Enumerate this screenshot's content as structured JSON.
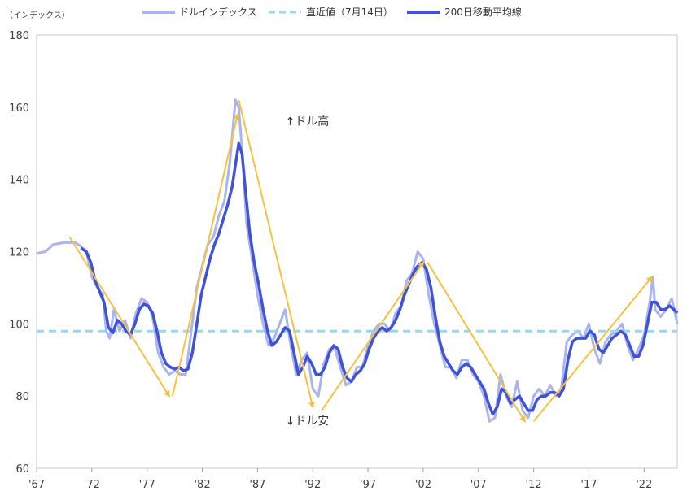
{
  "chart_data": {
    "type": "line",
    "unit_label": "（インデックス）",
    "ylim": [
      60,
      180
    ],
    "yticks": [
      60,
      80,
      100,
      120,
      140,
      160,
      180
    ],
    "xlim": [
      1967,
      2025
    ],
    "xticks": [
      {
        "value": 1967,
        "label": "'67"
      },
      {
        "value": 1972,
        "label": "'72"
      },
      {
        "value": 1977,
        "label": "'77"
      },
      {
        "value": 1982,
        "label": "'82"
      },
      {
        "value": 1987,
        "label": "'87"
      },
      {
        "value": 1992,
        "label": "'92"
      },
      {
        "value": 1997,
        "label": "'97"
      },
      {
        "value": 2002,
        "label": "'02"
      },
      {
        "value": 2007,
        "label": "'07"
      },
      {
        "value": 2012,
        "label": "'12"
      },
      {
        "value": 2017,
        "label": "'17"
      },
      {
        "value": 2022,
        "label": "'22"
      }
    ],
    "grid": false,
    "legend_position": "top",
    "series": [
      {
        "name": "ドルインデックス",
        "color": "#aab4f0",
        "points": [
          [
            1967.0,
            119.5
          ],
          [
            1967.8,
            120
          ],
          [
            1968.5,
            122
          ],
          [
            1969.5,
            122.5
          ],
          [
            1970.5,
            122.5
          ],
          [
            1971.0,
            121.5
          ],
          [
            1971.5,
            120
          ],
          [
            1972.0,
            113
          ],
          [
            1972.5,
            110
          ],
          [
            1973.0,
            108
          ],
          [
            1973.3,
            98
          ],
          [
            1973.6,
            96
          ],
          [
            1974.0,
            104
          ],
          [
            1974.5,
            98
          ],
          [
            1975.0,
            101
          ],
          [
            1975.5,
            96
          ],
          [
            1976.0,
            103
          ],
          [
            1976.5,
            107
          ],
          [
            1977.0,
            106
          ],
          [
            1977.5,
            102
          ],
          [
            1978.0,
            92
          ],
          [
            1978.5,
            88
          ],
          [
            1979.0,
            86
          ],
          [
            1979.5,
            87
          ],
          [
            1980.0,
            86
          ],
          [
            1980.5,
            86
          ],
          [
            1981.0,
            98
          ],
          [
            1981.5,
            110
          ],
          [
            1982.0,
            116
          ],
          [
            1982.5,
            122
          ],
          [
            1983.0,
            124
          ],
          [
            1983.5,
            130
          ],
          [
            1984.0,
            134
          ],
          [
            1984.5,
            145
          ],
          [
            1985.0,
            162
          ],
          [
            1985.3,
            160
          ],
          [
            1985.7,
            144
          ],
          [
            1986.0,
            128
          ],
          [
            1986.5,
            118
          ],
          [
            1987.0,
            108
          ],
          [
            1987.5,
            100
          ],
          [
            1988.0,
            94
          ],
          [
            1988.5,
            96
          ],
          [
            1989.0,
            100
          ],
          [
            1989.5,
            104
          ],
          [
            1990.0,
            94
          ],
          [
            1990.5,
            86
          ],
          [
            1991.0,
            90
          ],
          [
            1991.5,
            92
          ],
          [
            1992.0,
            82
          ],
          [
            1992.5,
            80
          ],
          [
            1993.0,
            89
          ],
          [
            1993.5,
            93
          ],
          [
            1994.0,
            93
          ],
          [
            1994.5,
            88
          ],
          [
            1995.0,
            83
          ],
          [
            1995.5,
            84
          ],
          [
            1996.0,
            88
          ],
          [
            1996.5,
            88
          ],
          [
            1997.0,
            94
          ],
          [
            1997.5,
            98
          ],
          [
            1998.0,
            100
          ],
          [
            1998.5,
            100
          ],
          [
            1999.0,
            98
          ],
          [
            1999.5,
            103
          ],
          [
            2000.0,
            105
          ],
          [
            2000.5,
            112
          ],
          [
            2001.0,
            114
          ],
          [
            2001.5,
            120
          ],
          [
            2002.0,
            118
          ],
          [
            2002.5,
            108
          ],
          [
            2003.0,
            100
          ],
          [
            2003.5,
            94
          ],
          [
            2004.0,
            88
          ],
          [
            2004.5,
            88
          ],
          [
            2005.0,
            85
          ],
          [
            2005.5,
            90
          ],
          [
            2006.0,
            90
          ],
          [
            2006.5,
            86
          ],
          [
            2007.0,
            84
          ],
          [
            2007.5,
            80
          ],
          [
            2008.0,
            73
          ],
          [
            2008.5,
            74
          ],
          [
            2009.0,
            86
          ],
          [
            2009.5,
            80
          ],
          [
            2010.0,
            77
          ],
          [
            2010.5,
            84
          ],
          [
            2011.0,
            76
          ],
          [
            2011.5,
            74
          ],
          [
            2012.0,
            80
          ],
          [
            2012.5,
            82
          ],
          [
            2013.0,
            80
          ],
          [
            2013.5,
            83
          ],
          [
            2014.0,
            80
          ],
          [
            2014.5,
            82
          ],
          [
            2015.0,
            95
          ],
          [
            2015.5,
            97
          ],
          [
            2016.0,
            98
          ],
          [
            2016.5,
            96
          ],
          [
            2017.0,
            100
          ],
          [
            2017.5,
            93
          ],
          [
            2018.0,
            89
          ],
          [
            2018.5,
            95
          ],
          [
            2019.0,
            97
          ],
          [
            2019.5,
            98
          ],
          [
            2020.0,
            100
          ],
          [
            2020.5,
            94
          ],
          [
            2021.0,
            90
          ],
          [
            2021.5,
            93
          ],
          [
            2022.0,
            97
          ],
          [
            2022.5,
            106
          ],
          [
            2022.8,
            113
          ],
          [
            2023.0,
            104
          ],
          [
            2023.5,
            102
          ],
          [
            2024.0,
            104
          ],
          [
            2024.5,
            107
          ],
          [
            2025.0,
            100
          ]
        ]
      },
      {
        "name": "直近値（7月14日）",
        "color": "#8fdcf5",
        "value": 98
      },
      {
        "name": "200日移動平均線",
        "color": "#4052d6",
        "points": [
          [
            1971.0,
            121
          ],
          [
            1971.5,
            120
          ],
          [
            1971.9,
            117
          ],
          [
            1972.3,
            112
          ],
          [
            1972.7,
            109
          ],
          [
            1973.1,
            106
          ],
          [
            1973.5,
            99
          ],
          [
            1973.9,
            97.5
          ],
          [
            1974.3,
            101
          ],
          [
            1974.7,
            100
          ],
          [
            1975.1,
            98
          ],
          [
            1975.5,
            97
          ],
          [
            1975.9,
            100
          ],
          [
            1976.3,
            104
          ],
          [
            1976.7,
            105.5
          ],
          [
            1977.1,
            105
          ],
          [
            1977.5,
            103
          ],
          [
            1977.9,
            98
          ],
          [
            1978.3,
            92
          ],
          [
            1978.7,
            89
          ],
          [
            1979.1,
            88
          ],
          [
            1979.5,
            87.5
          ],
          [
            1979.9,
            88
          ],
          [
            1980.3,
            87
          ],
          [
            1980.7,
            87.5
          ],
          [
            1981.1,
            92
          ],
          [
            1981.5,
            100
          ],
          [
            1981.9,
            108
          ],
          [
            1982.3,
            113
          ],
          [
            1982.7,
            118
          ],
          [
            1983.1,
            122
          ],
          [
            1983.5,
            125
          ],
          [
            1983.9,
            129
          ],
          [
            1984.3,
            133
          ],
          [
            1984.7,
            138
          ],
          [
            1985.0,
            144
          ],
          [
            1985.3,
            150
          ],
          [
            1985.6,
            147
          ],
          [
            1985.9,
            137
          ],
          [
            1986.3,
            125
          ],
          [
            1986.7,
            117
          ],
          [
            1987.1,
            111
          ],
          [
            1987.5,
            104
          ],
          [
            1987.9,
            98
          ],
          [
            1988.3,
            94
          ],
          [
            1988.7,
            95
          ],
          [
            1989.1,
            97
          ],
          [
            1989.5,
            99
          ],
          [
            1989.9,
            98
          ],
          [
            1990.3,
            92
          ],
          [
            1990.7,
            86
          ],
          [
            1991.1,
            88
          ],
          [
            1991.5,
            91
          ],
          [
            1991.9,
            89
          ],
          [
            1992.3,
            86
          ],
          [
            1992.7,
            86
          ],
          [
            1993.1,
            88
          ],
          [
            1993.5,
            92
          ],
          [
            1993.9,
            94
          ],
          [
            1994.3,
            93
          ],
          [
            1994.7,
            88
          ],
          [
            1995.1,
            85
          ],
          [
            1995.5,
            84
          ],
          [
            1995.9,
            86
          ],
          [
            1996.3,
            87
          ],
          [
            1996.7,
            89
          ],
          [
            1997.1,
            93
          ],
          [
            1997.5,
            96
          ],
          [
            1997.9,
            98
          ],
          [
            1998.3,
            99
          ],
          [
            1998.7,
            98
          ],
          [
            1999.1,
            99
          ],
          [
            1999.5,
            101
          ],
          [
            1999.9,
            104
          ],
          [
            2000.3,
            108
          ],
          [
            2000.7,
            111
          ],
          [
            2001.1,
            114
          ],
          [
            2001.5,
            116
          ],
          [
            2001.9,
            117
          ],
          [
            2002.3,
            115
          ],
          [
            2002.7,
            110
          ],
          [
            2003.1,
            102
          ],
          [
            2003.5,
            95
          ],
          [
            2003.9,
            91
          ],
          [
            2004.3,
            89
          ],
          [
            2004.7,
            87
          ],
          [
            2005.1,
            86
          ],
          [
            2005.5,
            88
          ],
          [
            2005.9,
            89
          ],
          [
            2006.3,
            88
          ],
          [
            2006.7,
            86
          ],
          [
            2007.1,
            84
          ],
          [
            2007.5,
            82
          ],
          [
            2007.9,
            78
          ],
          [
            2008.3,
            75
          ],
          [
            2008.7,
            77
          ],
          [
            2009.1,
            82
          ],
          [
            2009.5,
            81
          ],
          [
            2009.9,
            78
          ],
          [
            2010.3,
            79
          ],
          [
            2010.7,
            80
          ],
          [
            2011.1,
            78
          ],
          [
            2011.5,
            76
          ],
          [
            2011.9,
            76
          ],
          [
            2012.3,
            79
          ],
          [
            2012.7,
            80
          ],
          [
            2013.1,
            80
          ],
          [
            2013.5,
            81
          ],
          [
            2013.9,
            81
          ],
          [
            2014.3,
            80
          ],
          [
            2014.7,
            82
          ],
          [
            2015.1,
            90
          ],
          [
            2015.5,
            95
          ],
          [
            2015.9,
            96
          ],
          [
            2016.3,
            96
          ],
          [
            2016.7,
            96
          ],
          [
            2017.1,
            98
          ],
          [
            2017.5,
            97
          ],
          [
            2017.9,
            93
          ],
          [
            2018.3,
            92
          ],
          [
            2018.7,
            94
          ],
          [
            2019.1,
            96
          ],
          [
            2019.5,
            97
          ],
          [
            2019.9,
            98
          ],
          [
            2020.3,
            97
          ],
          [
            2020.7,
            94
          ],
          [
            2021.1,
            91
          ],
          [
            2021.5,
            91
          ],
          [
            2021.9,
            94
          ],
          [
            2022.3,
            100
          ],
          [
            2022.7,
            106
          ],
          [
            2023.1,
            106
          ],
          [
            2023.5,
            104
          ],
          [
            2023.9,
            104
          ],
          [
            2024.3,
            105
          ],
          [
            2024.7,
            104
          ],
          [
            2025.0,
            103
          ]
        ]
      }
    ],
    "trend_arrows": {
      "color": "#f5c242",
      "segments": [
        [
          [
            1970.0,
            124
          ],
          [
            1979.0,
            80
          ]
        ],
        [
          [
            1979.3,
            80
          ],
          [
            1985.2,
            158
          ]
        ],
        [
          [
            1985.3,
            162
          ],
          [
            1992.0,
            77
          ]
        ],
        [
          [
            1992.8,
            76
          ],
          [
            2002.0,
            117
          ]
        ],
        [
          [
            2002.4,
            117
          ],
          [
            2011.2,
            73
          ]
        ],
        [
          [
            2012.0,
            73
          ],
          [
            2022.7,
            113
          ]
        ]
      ]
    },
    "annotations": [
      {
        "text": "↑ドル高",
        "x": 1991.5,
        "y": 155
      },
      {
        "text": "↓ドル安",
        "x": 1991.5,
        "y": 72
      }
    ]
  }
}
